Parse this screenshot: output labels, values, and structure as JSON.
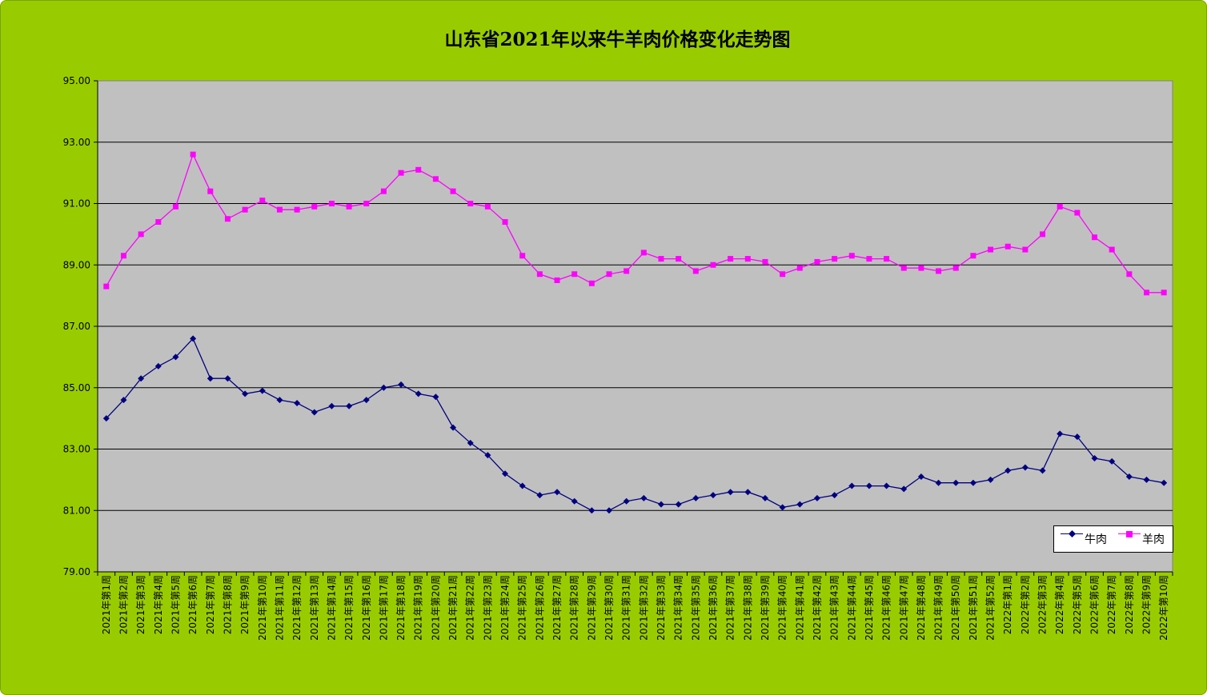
{
  "chart_data": {
    "type": "line",
    "title": "山东省2021年以来牛羊肉价格变化走势图",
    "xlabel": "",
    "ylabel": "",
    "ylim": [
      79,
      95
    ],
    "yticks": [
      "79.00",
      "81.00",
      "83.00",
      "85.00",
      "87.00",
      "89.00",
      "91.00",
      "93.00",
      "95.00"
    ],
    "grid": true,
    "legend_position": "bottom-right",
    "colors": {
      "background": "#99cc00",
      "plot": "#c0c0c0",
      "beef": "#000080",
      "mutton": "#ff00ff"
    },
    "categories": [
      "2021年第1周",
      "2021年第2周",
      "2021年第3周",
      "2021年第4周",
      "2021年第5周",
      "2021年第6周",
      "2021年第7周",
      "2021年第8周",
      "2021年第9周",
      "2021年第10周",
      "2021年第11周",
      "2021年第12周",
      "2021年第13周",
      "2021年第14周",
      "2021年第15周",
      "2021年第16周",
      "2021年第17周",
      "2021年第18周",
      "2021年第19周",
      "2021年第20周",
      "2021年第21周",
      "2021年第22周",
      "2021年第23周",
      "2021年第24周",
      "2021年第25周",
      "2021年第26周",
      "2021年第27周",
      "2021年第28周",
      "2021年第29周",
      "2021年第30周",
      "2021年第31周",
      "2021年第32周",
      "2021年第33周",
      "2021年第34周",
      "2021年第35周",
      "2021年第36周",
      "2021年第37周",
      "2021年第38周",
      "2021年第39周",
      "2021年第40周",
      "2021年第41周",
      "2021年第42周",
      "2021年第43周",
      "2021年第44周",
      "2021年第45周",
      "2021年第46周",
      "2021年第47周",
      "2021年第48周",
      "2021年第49周",
      "2021年第50周",
      "2021年第51周",
      "2021年第52周",
      "2022年第1周",
      "2022年第2周",
      "2022年第3周",
      "2022年第4周",
      "2022年第5周",
      "2022年第6周",
      "2022年第7周",
      "2022年第8周",
      "2022年第9周",
      "2022年第10周"
    ],
    "series": [
      {
        "name": "牛肉",
        "color": "#000080",
        "marker": "diamond",
        "values": [
          84.0,
          84.6,
          85.3,
          85.7,
          86.0,
          86.6,
          85.3,
          85.3,
          84.8,
          84.9,
          84.6,
          84.5,
          84.2,
          84.4,
          84.4,
          84.6,
          85.0,
          85.1,
          84.8,
          84.7,
          83.7,
          83.2,
          82.8,
          82.2,
          81.8,
          81.5,
          81.6,
          81.3,
          81.0,
          81.0,
          81.3,
          81.4,
          81.2,
          81.2,
          81.4,
          81.5,
          81.6,
          81.6,
          81.4,
          81.1,
          81.2,
          81.4,
          81.5,
          81.8,
          81.8,
          81.8,
          81.7,
          82.1,
          81.9,
          81.9,
          81.9,
          82.0,
          82.3,
          82.4,
          82.3,
          83.5,
          83.4,
          82.7,
          82.6,
          82.1,
          82.0,
          81.9
        ]
      },
      {
        "name": "羊肉",
        "color": "#ff00ff",
        "marker": "square",
        "values": [
          88.3,
          89.3,
          90.0,
          90.4,
          90.9,
          92.6,
          91.4,
          90.5,
          90.8,
          91.1,
          90.8,
          90.8,
          90.9,
          91.0,
          90.9,
          91.0,
          91.4,
          92.0,
          92.1,
          91.8,
          91.4,
          91.0,
          90.9,
          90.4,
          89.3,
          88.7,
          88.5,
          88.7,
          88.4,
          88.7,
          88.8,
          89.4,
          89.2,
          89.2,
          88.8,
          89.0,
          89.2,
          89.2,
          89.1,
          88.7,
          88.9,
          89.1,
          89.2,
          89.3,
          89.2,
          89.2,
          88.9,
          88.9,
          88.8,
          88.9,
          89.3,
          89.5,
          89.6,
          89.5,
          90.0,
          90.9,
          90.7,
          89.9,
          89.5,
          88.7,
          88.1,
          88.1
        ]
      }
    ]
  }
}
